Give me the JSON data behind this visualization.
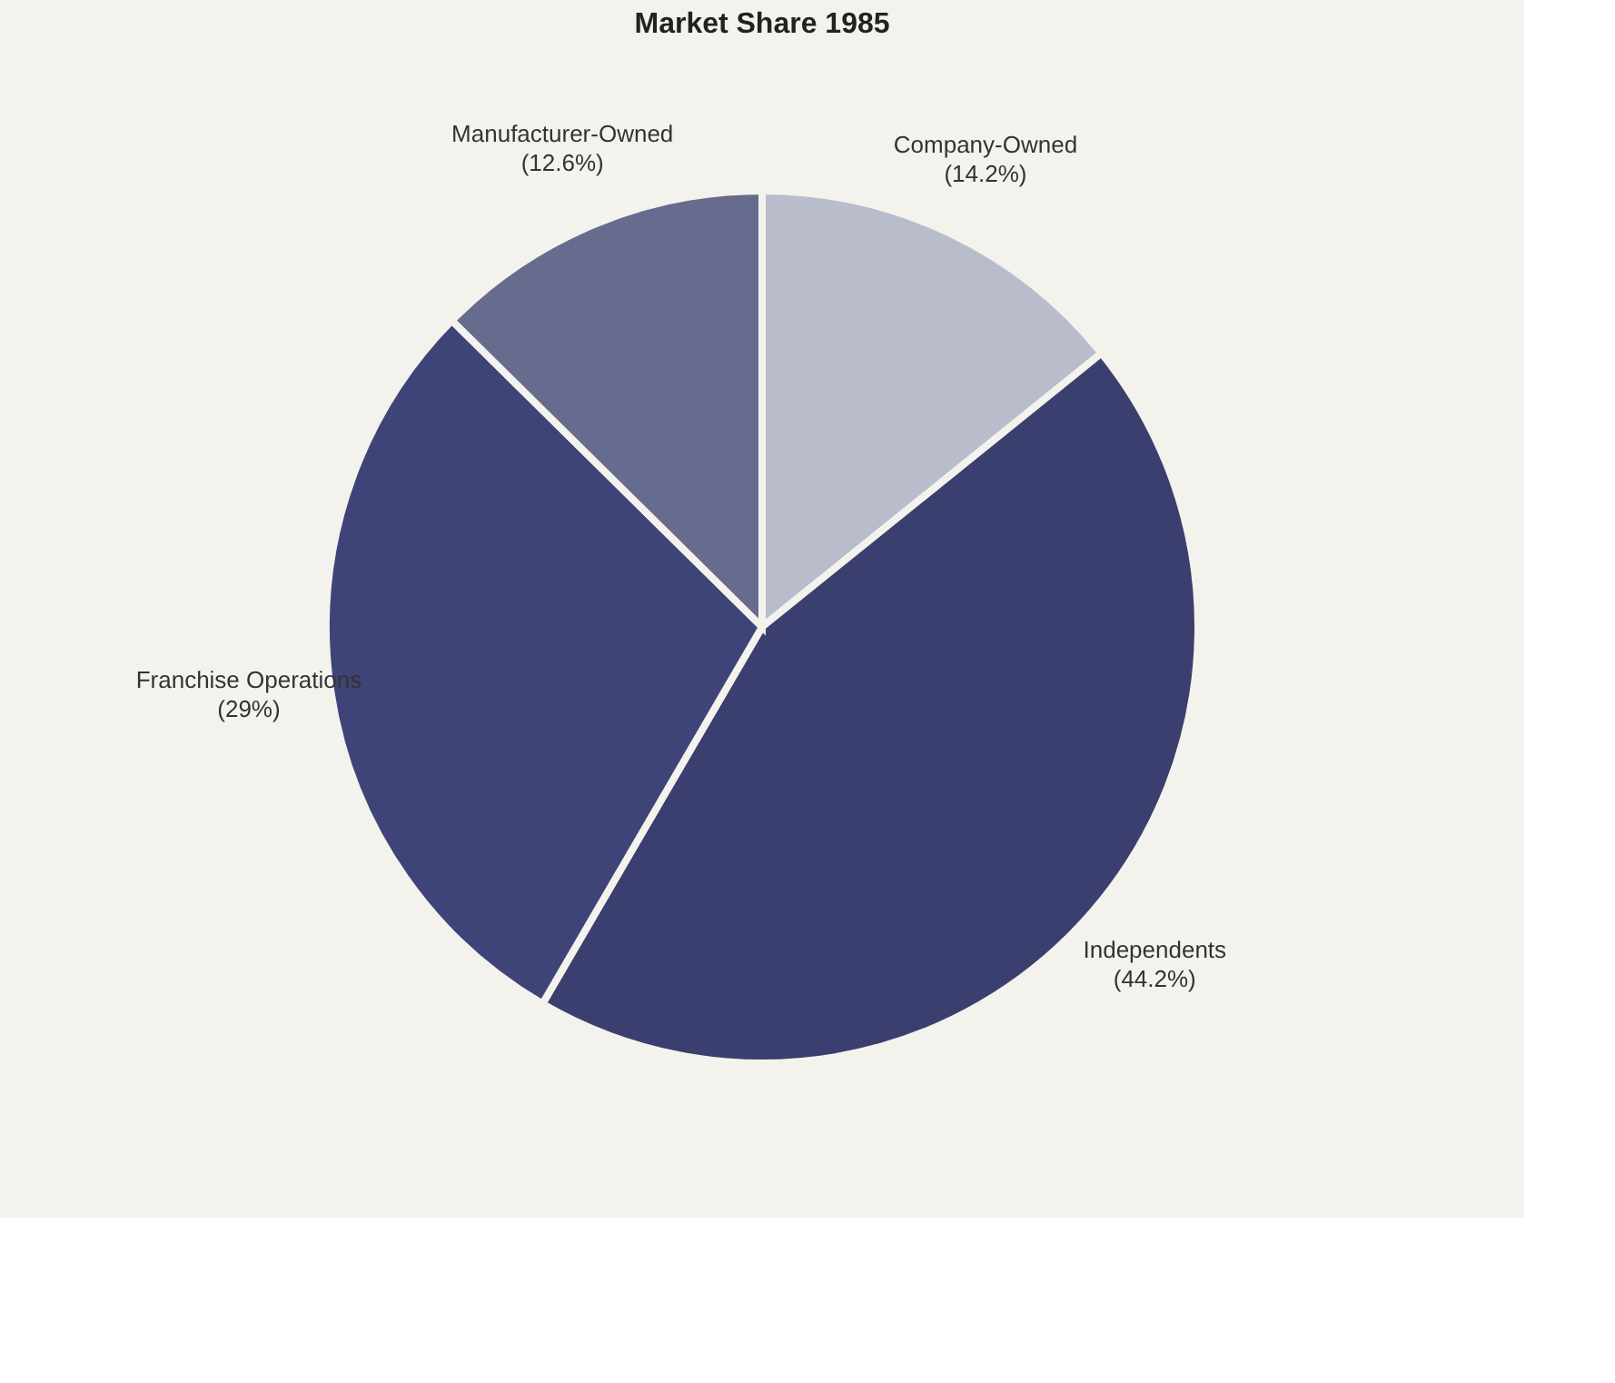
{
  "chart_data": {
    "type": "pie",
    "title": "Market Share 1985",
    "categories": [
      "Company-Owned",
      "Independents",
      "Franchise Operations",
      "Manufacturer-Owned"
    ],
    "values": [
      14.2,
      44.2,
      29,
      12.6
    ],
    "value_labels": [
      "(14.2%)",
      "(44.2%)",
      "(29%)",
      "(12.6%)"
    ],
    "colors": [
      "#b9bccb",
      "#3b3f6f",
      "#3f4478",
      "#676b8e"
    ],
    "legend": false
  }
}
